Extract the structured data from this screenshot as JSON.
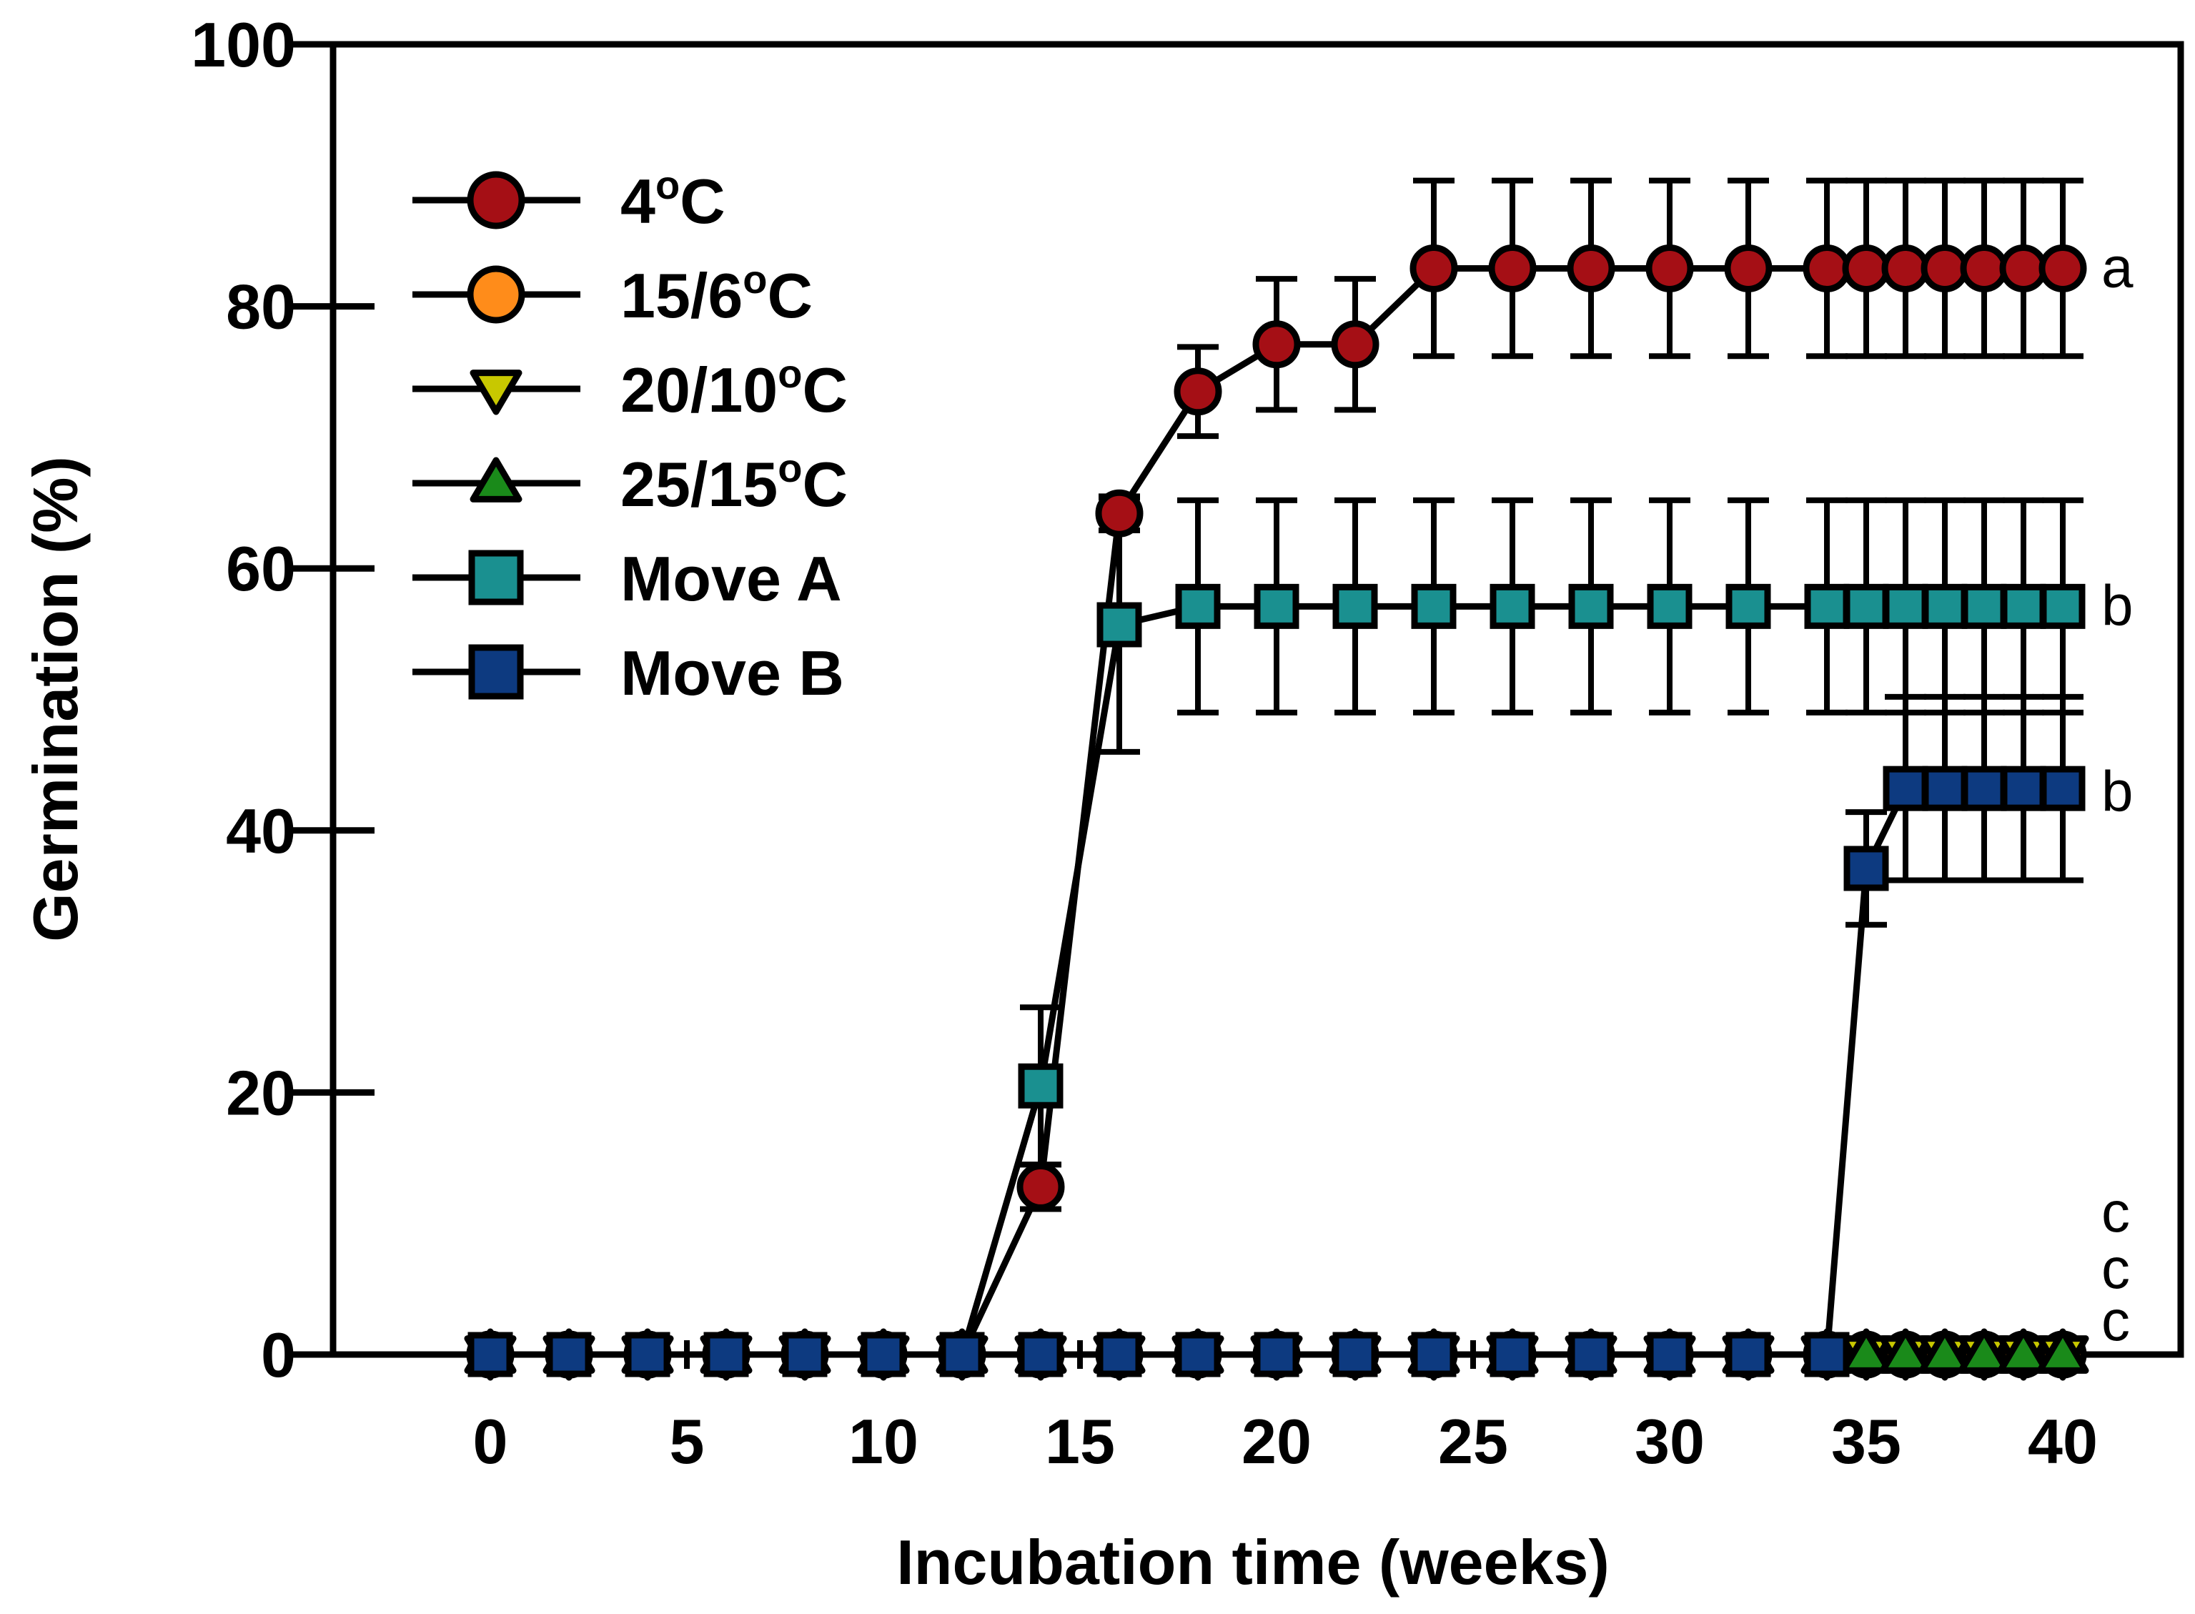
{
  "chart_data": {
    "type": "line",
    "title": "",
    "xlabel": "Incubation time (weeks)",
    "ylabel": "Germination (%)",
    "xlim": [
      -4,
      43
    ],
    "ylim": [
      0,
      100
    ],
    "xticks": [
      0,
      5,
      10,
      15,
      20,
      25,
      30,
      35,
      40
    ],
    "yticks": [
      0,
      20,
      40,
      60,
      80,
      100
    ],
    "legend_position": "top-left",
    "series": [
      {
        "name": "4°C",
        "label_main": "4",
        "label_sup": "o",
        "label_tail": "C",
        "marker": "circle",
        "color": "#a50f15",
        "points": [
          {
            "x": 0,
            "y": 0
          },
          {
            "x": 2,
            "y": 0
          },
          {
            "x": 4,
            "y": 0
          },
          {
            "x": 6,
            "y": 0
          },
          {
            "x": 8,
            "y": 0
          },
          {
            "x": 10,
            "y": 0
          },
          {
            "x": 12,
            "y": 0
          },
          {
            "x": 14,
            "y": 12.8,
            "err": 1.7
          },
          {
            "x": 16,
            "y": 64.2,
            "err": 1.3
          },
          {
            "x": 18,
            "y": 73.5,
            "err": 3.4
          },
          {
            "x": 20,
            "y": 77.1,
            "err": 5.0
          },
          {
            "x": 22,
            "y": 77.1,
            "err": 5.0
          },
          {
            "x": 24,
            "y": 82.9,
            "err": 6.7
          },
          {
            "x": 26,
            "y": 82.9,
            "err": 6.7
          },
          {
            "x": 28,
            "y": 82.9,
            "err": 6.7
          },
          {
            "x": 30,
            "y": 82.9,
            "err": 6.7
          },
          {
            "x": 32,
            "y": 82.9,
            "err": 6.7
          },
          {
            "x": 34,
            "y": 82.9,
            "err": 6.7
          },
          {
            "x": 35,
            "y": 82.9,
            "err": 6.7
          },
          {
            "x": 36,
            "y": 82.9,
            "err": 6.7
          },
          {
            "x": 37,
            "y": 82.9,
            "err": 6.7
          },
          {
            "x": 38,
            "y": 82.9,
            "err": 6.7
          },
          {
            "x": 39,
            "y": 82.9,
            "err": 6.7
          },
          {
            "x": 40,
            "y": 82.9,
            "err": 6.7
          }
        ]
      },
      {
        "name": "15/6°C",
        "label_main": "15/6",
        "label_sup": "o",
        "label_tail": "C",
        "marker": "circle",
        "color": "#ff8c1a",
        "points": [
          {
            "x": 0,
            "y": 0
          },
          {
            "x": 2,
            "y": 0
          },
          {
            "x": 4,
            "y": 0
          },
          {
            "x": 6,
            "y": 0
          },
          {
            "x": 8,
            "y": 0
          },
          {
            "x": 10,
            "y": 0
          },
          {
            "x": 12,
            "y": 0
          },
          {
            "x": 14,
            "y": 0
          },
          {
            "x": 16,
            "y": 0
          },
          {
            "x": 18,
            "y": 0
          },
          {
            "x": 20,
            "y": 0
          },
          {
            "x": 22,
            "y": 0
          },
          {
            "x": 24,
            "y": 0
          },
          {
            "x": 26,
            "y": 0
          },
          {
            "x": 28,
            "y": 0
          },
          {
            "x": 30,
            "y": 0
          },
          {
            "x": 32,
            "y": 0
          },
          {
            "x": 34,
            "y": 0
          },
          {
            "x": 35,
            "y": 0
          },
          {
            "x": 36,
            "y": 0
          },
          {
            "x": 37,
            "y": 0
          },
          {
            "x": 38,
            "y": 0
          },
          {
            "x": 39,
            "y": 0
          },
          {
            "x": 40,
            "y": 0
          }
        ]
      },
      {
        "name": "20/10°C",
        "label_main": "20/10",
        "label_sup": "o",
        "label_tail": "C",
        "marker": "triangle-down",
        "color": "#c8c800",
        "points": [
          {
            "x": 0,
            "y": 0
          },
          {
            "x": 2,
            "y": 0
          },
          {
            "x": 4,
            "y": 0
          },
          {
            "x": 6,
            "y": 0
          },
          {
            "x": 8,
            "y": 0
          },
          {
            "x": 10,
            "y": 0
          },
          {
            "x": 12,
            "y": 0
          },
          {
            "x": 14,
            "y": 0
          },
          {
            "x": 16,
            "y": 0
          },
          {
            "x": 18,
            "y": 0
          },
          {
            "x": 20,
            "y": 0
          },
          {
            "x": 22,
            "y": 0
          },
          {
            "x": 24,
            "y": 0
          },
          {
            "x": 26,
            "y": 0
          },
          {
            "x": 28,
            "y": 0
          },
          {
            "x": 30,
            "y": 0
          },
          {
            "x": 32,
            "y": 0
          },
          {
            "x": 34,
            "y": 0
          },
          {
            "x": 35,
            "y": 0
          },
          {
            "x": 36,
            "y": 0
          },
          {
            "x": 37,
            "y": 0
          },
          {
            "x": 38,
            "y": 0
          },
          {
            "x": 39,
            "y": 0
          },
          {
            "x": 40,
            "y": 0
          }
        ]
      },
      {
        "name": "25/15°C",
        "label_main": "25/15",
        "label_sup": "o",
        "label_tail": "C",
        "marker": "triangle-up",
        "color": "#1a8a1a",
        "points": [
          {
            "x": 0,
            "y": 0
          },
          {
            "x": 2,
            "y": 0
          },
          {
            "x": 4,
            "y": 0
          },
          {
            "x": 6,
            "y": 0
          },
          {
            "x": 8,
            "y": 0
          },
          {
            "x": 10,
            "y": 0
          },
          {
            "x": 12,
            "y": 0
          },
          {
            "x": 14,
            "y": 0
          },
          {
            "x": 16,
            "y": 0
          },
          {
            "x": 18,
            "y": 0
          },
          {
            "x": 20,
            "y": 0
          },
          {
            "x": 22,
            "y": 0
          },
          {
            "x": 24,
            "y": 0
          },
          {
            "x": 26,
            "y": 0
          },
          {
            "x": 28,
            "y": 0
          },
          {
            "x": 30,
            "y": 0
          },
          {
            "x": 32,
            "y": 0
          },
          {
            "x": 34,
            "y": 0
          },
          {
            "x": 35,
            "y": 0
          },
          {
            "x": 36,
            "y": 0
          },
          {
            "x": 37,
            "y": 0
          },
          {
            "x": 38,
            "y": 0
          },
          {
            "x": 39,
            "y": 0
          },
          {
            "x": 40,
            "y": 0
          }
        ]
      },
      {
        "name": "Move A",
        "label_main": "Move A",
        "label_sup": "",
        "label_tail": "",
        "marker": "square",
        "color": "#1a9090",
        "points": [
          {
            "x": 0,
            "y": 0
          },
          {
            "x": 2,
            "y": 0
          },
          {
            "x": 4,
            "y": 0
          },
          {
            "x": 6,
            "y": 0
          },
          {
            "x": 8,
            "y": 0
          },
          {
            "x": 10,
            "y": 0
          },
          {
            "x": 12,
            "y": 0
          },
          {
            "x": 14,
            "y": 20.5,
            "err": 6.0
          },
          {
            "x": 16,
            "y": 55.7,
            "err": 9.7
          },
          {
            "x": 18,
            "y": 57.1,
            "err": 8.1
          },
          {
            "x": 20,
            "y": 57.1,
            "err": 8.1
          },
          {
            "x": 22,
            "y": 57.1,
            "err": 8.1
          },
          {
            "x": 24,
            "y": 57.1,
            "err": 8.1
          },
          {
            "x": 26,
            "y": 57.1,
            "err": 8.1
          },
          {
            "x": 28,
            "y": 57.1,
            "err": 8.1
          },
          {
            "x": 30,
            "y": 57.1,
            "err": 8.1
          },
          {
            "x": 32,
            "y": 57.1,
            "err": 8.1
          },
          {
            "x": 34,
            "y": 57.1,
            "err": 8.1
          },
          {
            "x": 35,
            "y": 57.1,
            "err": 8.1
          },
          {
            "x": 36,
            "y": 57.1,
            "err": 8.1
          },
          {
            "x": 37,
            "y": 57.1,
            "err": 8.1
          },
          {
            "x": 38,
            "y": 57.1,
            "err": 8.1
          },
          {
            "x": 39,
            "y": 57.1,
            "err": 8.1
          },
          {
            "x": 40,
            "y": 57.1,
            "err": 8.1
          }
        ]
      },
      {
        "name": "Move B",
        "label_main": "Move B",
        "label_sup": "",
        "label_tail": "",
        "marker": "square",
        "color": "#0d3a80",
        "points": [
          {
            "x": 0,
            "y": 0
          },
          {
            "x": 2,
            "y": 0
          },
          {
            "x": 4,
            "y": 0
          },
          {
            "x": 6,
            "y": 0
          },
          {
            "x": 8,
            "y": 0
          },
          {
            "x": 10,
            "y": 0
          },
          {
            "x": 12,
            "y": 0
          },
          {
            "x": 14,
            "y": 0
          },
          {
            "x": 16,
            "y": 0
          },
          {
            "x": 18,
            "y": 0
          },
          {
            "x": 20,
            "y": 0
          },
          {
            "x": 22,
            "y": 0
          },
          {
            "x": 24,
            "y": 0
          },
          {
            "x": 26,
            "y": 0
          },
          {
            "x": 28,
            "y": 0
          },
          {
            "x": 30,
            "y": 0
          },
          {
            "x": 32,
            "y": 0
          },
          {
            "x": 34,
            "y": 0
          },
          {
            "x": 35,
            "y": 37.1,
            "err": 4.3
          },
          {
            "x": 36,
            "y": 43.2,
            "err": 7.0
          },
          {
            "x": 37,
            "y": 43.2,
            "err": 7.0
          },
          {
            "x": 38,
            "y": 43.2,
            "err": 7.0
          },
          {
            "x": 39,
            "y": 43.2,
            "err": 7.0
          },
          {
            "x": 40,
            "y": 43.2,
            "err": 7.0
          }
        ]
      }
    ],
    "significance_letters": [
      {
        "text": "a",
        "y": 82.9
      },
      {
        "text": "b",
        "y": 57.1
      },
      {
        "text": "b",
        "y": 42.9
      },
      {
        "text": "c",
        "y": 10.8
      },
      {
        "text": "c",
        "y": 6.5
      },
      {
        "text": "c",
        "y": 2.5
      }
    ]
  }
}
